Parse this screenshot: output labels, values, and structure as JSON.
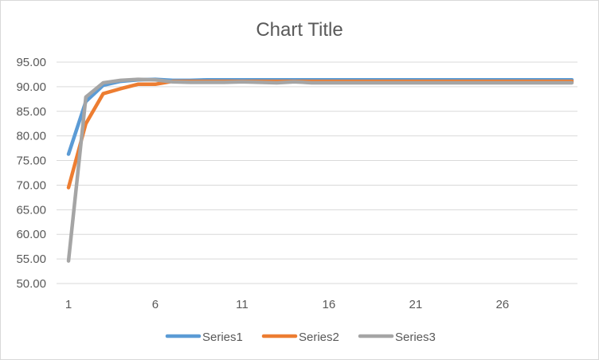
{
  "chart_data": {
    "type": "line",
    "title": "Chart Title",
    "xlabel": "",
    "ylabel": "",
    "ylim": [
      50,
      95
    ],
    "yticks": [
      "50.00",
      "55.00",
      "60.00",
      "65.00",
      "70.00",
      "75.00",
      "80.00",
      "85.00",
      "90.00",
      "95.00"
    ],
    "xticks": [
      "1",
      "6",
      "11",
      "16",
      "21",
      "26"
    ],
    "grid": true,
    "legend_position": "bottom",
    "x": [
      1,
      2,
      3,
      4,
      5,
      6,
      7,
      8,
      9,
      10,
      11,
      12,
      13,
      14,
      15,
      16,
      17,
      18,
      19,
      20,
      21,
      22,
      23,
      24,
      25,
      26,
      27,
      28,
      29,
      30
    ],
    "series": [
      {
        "name": "Series1",
        "color": "#5b9bd5",
        "values": [
          76.3,
          87.0,
          90.3,
          91.1,
          91.4,
          91.5,
          91.3,
          91.3,
          91.4,
          91.4,
          91.4,
          91.4,
          91.4,
          91.4,
          91.4,
          91.4,
          91.4,
          91.4,
          91.4,
          91.4,
          91.4,
          91.4,
          91.4,
          91.4,
          91.4,
          91.4,
          91.4,
          91.4,
          91.4,
          91.4
        ]
      },
      {
        "name": "Series2",
        "color": "#ed7d31",
        "values": [
          69.5,
          82.5,
          88.6,
          89.6,
          90.5,
          90.5,
          91.1,
          91.1,
          91.1,
          91.1,
          91.1,
          91.1,
          91.1,
          91.1,
          91.1,
          91.1,
          91.1,
          91.1,
          91.1,
          91.1,
          91.1,
          91.1,
          91.1,
          91.1,
          91.1,
          91.1,
          91.1,
          91.1,
          91.1,
          91.1
        ]
      },
      {
        "name": "Series3",
        "color": "#a5a5a5",
        "values": [
          54.6,
          87.9,
          90.8,
          91.3,
          91.5,
          91.4,
          91.0,
          90.9,
          90.9,
          90.9,
          91.0,
          90.9,
          90.8,
          91.0,
          90.8,
          90.8,
          90.8,
          90.8,
          90.8,
          90.8,
          90.8,
          90.8,
          90.8,
          90.8,
          90.8,
          90.8,
          90.8,
          90.8,
          90.8,
          90.8
        ]
      }
    ]
  }
}
